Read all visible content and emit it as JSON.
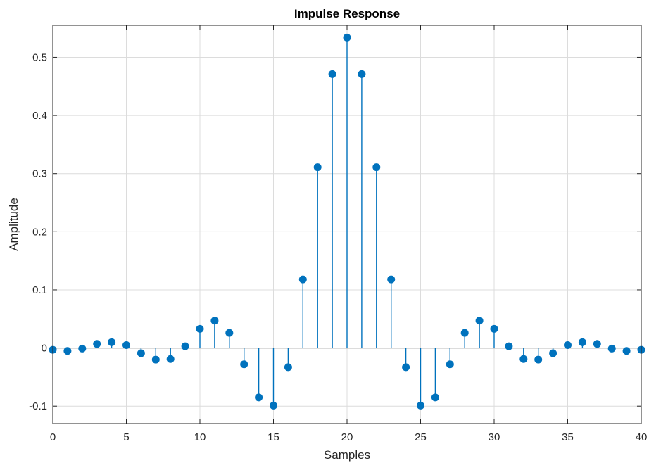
{
  "chart_data": {
    "type": "stem",
    "title": "Impulse Response",
    "xlabel": "Samples",
    "ylabel": "Amplitude",
    "xlim": [
      0,
      40
    ],
    "ylim": [
      -0.13,
      0.555
    ],
    "xticks": [
      0,
      5,
      10,
      15,
      20,
      25,
      30,
      35,
      40
    ],
    "xtick_labels": [
      "0",
      "5",
      "10",
      "15",
      "20",
      "25",
      "30",
      "35",
      "40"
    ],
    "yticks": [
      -0.1,
      0,
      0.1,
      0.2,
      0.3,
      0.4,
      0.5
    ],
    "ytick_labels": [
      "-0.1",
      "0",
      "0.1",
      "0.2",
      "0.3",
      "0.4",
      "0.5"
    ],
    "grid": true,
    "baseline": 0,
    "color": "#0072BD",
    "x": [
      0,
      1,
      2,
      3,
      4,
      5,
      6,
      7,
      8,
      9,
      10,
      11,
      12,
      13,
      14,
      15,
      16,
      17,
      18,
      19,
      20,
      21,
      22,
      23,
      24,
      25,
      26,
      27,
      28,
      29,
      30,
      31,
      32,
      33,
      34,
      35,
      36,
      37,
      38,
      39,
      40
    ],
    "values": [
      -0.003,
      -0.005,
      -0.001,
      0.007,
      0.01,
      0.005,
      -0.009,
      -0.02,
      -0.019,
      0.003,
      0.033,
      0.047,
      0.026,
      -0.028,
      -0.085,
      -0.099,
      -0.033,
      0.118,
      0.311,
      0.471,
      0.534,
      0.471,
      0.311,
      0.118,
      -0.033,
      -0.099,
      -0.085,
      -0.028,
      0.026,
      0.047,
      0.033,
      0.003,
      -0.019,
      -0.02,
      -0.009,
      0.005,
      0.01,
      0.007,
      -0.001,
      -0.005,
      -0.003
    ]
  }
}
